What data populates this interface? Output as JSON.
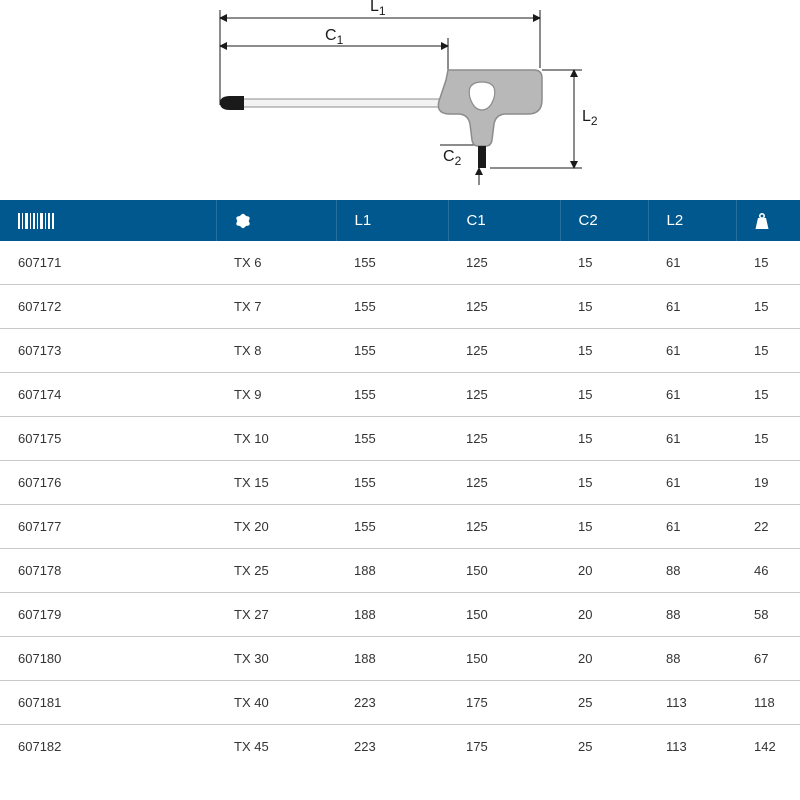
{
  "colors": {
    "header_bg": "#00588e",
    "header_fg": "#ffffff",
    "cell_fg": "#333333",
    "row_divider": "#c9c9c9",
    "diagram_stroke": "#1a1a1a",
    "diagram_handle_fill": "#b8b8b8",
    "diagram_handle_stroke": "#8c8c8c",
    "diagram_tip_fill": "#1a1a1a"
  },
  "diagram": {
    "labels": {
      "L1": {
        "base": "L",
        "sub": "1"
      },
      "C1": {
        "base": "C",
        "sub": "1"
      },
      "C2": {
        "base": "C",
        "sub": "2"
      },
      "L2": {
        "base": "L",
        "sub": "2"
      }
    }
  },
  "table": {
    "header_icons": {
      "code": "barcode",
      "type": "torx",
      "weight": "weight"
    },
    "header_labels": {
      "L1": "L1",
      "C1": "C1",
      "C2": "C2",
      "L2": "L2"
    },
    "rows": [
      {
        "code": "607171",
        "type": "TX 6",
        "L1": "155",
        "C1": "125",
        "C2": "15",
        "L2": "61",
        "weight": "15"
      },
      {
        "code": "607172",
        "type": "TX 7",
        "L1": "155",
        "C1": "125",
        "C2": "15",
        "L2": "61",
        "weight": "15"
      },
      {
        "code": "607173",
        "type": "TX 8",
        "L1": "155",
        "C1": "125",
        "C2": "15",
        "L2": "61",
        "weight": "15"
      },
      {
        "code": "607174",
        "type": "TX 9",
        "L1": "155",
        "C1": "125",
        "C2": "15",
        "L2": "61",
        "weight": "15"
      },
      {
        "code": "607175",
        "type": "TX 10",
        "L1": "155",
        "C1": "125",
        "C2": "15",
        "L2": "61",
        "weight": "15"
      },
      {
        "code": "607176",
        "type": "TX 15",
        "L1": "155",
        "C1": "125",
        "C2": "15",
        "L2": "61",
        "weight": "19"
      },
      {
        "code": "607177",
        "type": "TX 20",
        "L1": "155",
        "C1": "125",
        "C2": "15",
        "L2": "61",
        "weight": "22"
      },
      {
        "code": "607178",
        "type": "TX 25",
        "L1": "188",
        "C1": "150",
        "C2": "20",
        "L2": "88",
        "weight": "46"
      },
      {
        "code": "607179",
        "type": "TX 27",
        "L1": "188",
        "C1": "150",
        "C2": "20",
        "L2": "88",
        "weight": "58"
      },
      {
        "code": "607180",
        "type": "TX 30",
        "L1": "188",
        "C1": "150",
        "C2": "20",
        "L2": "88",
        "weight": "67"
      },
      {
        "code": "607181",
        "type": "TX 40",
        "L1": "223",
        "C1": "175",
        "C2": "25",
        "L2": "113",
        "weight": "118"
      },
      {
        "code": "607182",
        "type": "TX 45",
        "L1": "223",
        "C1": "175",
        "C2": "25",
        "L2": "113",
        "weight": "142"
      }
    ]
  }
}
